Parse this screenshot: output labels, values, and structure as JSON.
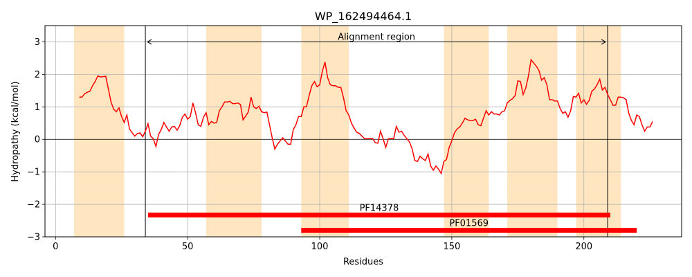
{
  "chart_data": {
    "type": "line",
    "title": "WP_162494464.1",
    "xlabel": "Residues",
    "ylabel": "Hydropathy (kcal/mol)",
    "xlim": [
      -4,
      237
    ],
    "ylim": [
      -3,
      3.5
    ],
    "xticks": [
      0,
      50,
      100,
      150,
      200
    ],
    "yticks": [
      -3,
      -2,
      -1,
      0,
      1,
      2,
      3
    ],
    "grid": true,
    "colors": {
      "line": "#ff0000",
      "shade": "#ffe6c0",
      "bar": "#ff0000",
      "grid": "#b0b0b0"
    },
    "shaded_regions": [
      [
        7,
        26
      ],
      [
        57,
        78
      ],
      [
        93,
        111
      ],
      [
        147,
        164
      ],
      [
        171,
        190
      ],
      [
        197,
        214
      ]
    ],
    "alignment_region": {
      "label": "Alignment region",
      "start": 34,
      "end": 209,
      "y": 3.0
    },
    "domains": [
      {
        "name": "PF14378",
        "start": 35,
        "end": 210,
        "y": -2.33
      },
      {
        "name": "PF01569",
        "start": 93,
        "end": 220,
        "y": -2.8
      }
    ],
    "series": [
      {
        "x": [
          9,
          10,
          11,
          12,
          13,
          14,
          15,
          16,
          17,
          18,
          19,
          20,
          21,
          22,
          23,
          24,
          25,
          26,
          27,
          28,
          29,
          30,
          31,
          32,
          33,
          34,
          35,
          36,
          37,
          38,
          39,
          40,
          41,
          42,
          43,
          44,
          45,
          46,
          47,
          48,
          49,
          50,
          51,
          52,
          53,
          54,
          55,
          56,
          57,
          58,
          59,
          60,
          61,
          62,
          63,
          64,
          65,
          66,
          67,
          68,
          69,
          70,
          71,
          72,
          73,
          74,
          75,
          76,
          77,
          78,
          79,
          80,
          81,
          82,
          83,
          84,
          85,
          86,
          87,
          88,
          89,
          90,
          91,
          92,
          93,
          94,
          95,
          96,
          97,
          98,
          99,
          100,
          101,
          102,
          103,
          104,
          105,
          106,
          107,
          108,
          109,
          110,
          111,
          112,
          113,
          114,
          115,
          116,
          117,
          118,
          119,
          120,
          121,
          122,
          123,
          124,
          125,
          126,
          127,
          128,
          129,
          130,
          131,
          132,
          133,
          134,
          135,
          136,
          137,
          138,
          139,
          140,
          141,
          142,
          143,
          144,
          145,
          146,
          147,
          148,
          149,
          150,
          151,
          152,
          153,
          154,
          155,
          156,
          157,
          158,
          159,
          160,
          161,
          162,
          163,
          164,
          165,
          166,
          167,
          168,
          169,
          170,
          171,
          172,
          173,
          174,
          175,
          176,
          177,
          178,
          179,
          180,
          181,
          182,
          183,
          184,
          185,
          186,
          187,
          188,
          189,
          190,
          191,
          192,
          193,
          194,
          195,
          196,
          197,
          198,
          199,
          200,
          201,
          202,
          203,
          204,
          205,
          206,
          207,
          208,
          209,
          210,
          211,
          212,
          213,
          214,
          215,
          216,
          217,
          218,
          219,
          220,
          221,
          222,
          223,
          224,
          225,
          226
        ],
        "values": [
          1.3,
          1.3,
          1.4,
          1.45,
          1.48,
          1.65,
          1.78,
          1.95,
          1.92,
          1.93,
          1.94,
          1.55,
          1.15,
          0.93,
          0.85,
          0.97,
          0.7,
          0.52,
          0.75,
          0.32,
          0.2,
          0.1,
          0.18,
          0.2,
          0.08,
          0.25,
          0.48,
          0.1,
          0.02,
          -0.22,
          0.15,
          0.3,
          0.52,
          0.38,
          0.25,
          0.38,
          0.4,
          0.28,
          0.42,
          0.68,
          0.78,
          0.62,
          0.7,
          1.12,
          0.82,
          0.45,
          0.4,
          0.68,
          0.82,
          0.45,
          0.55,
          0.5,
          0.52,
          0.88,
          1.0,
          1.15,
          1.15,
          1.17,
          1.1,
          1.1,
          1.12,
          1.07,
          0.6,
          0.72,
          0.85,
          1.3,
          1.0,
          0.95,
          1.02,
          0.85,
          0.82,
          0.84,
          0.45,
          0.05,
          -0.3,
          -0.15,
          -0.05,
          0.05,
          -0.05,
          -0.15,
          -0.15,
          0.3,
          0.45,
          0.7,
          0.7,
          1.0,
          1.0,
          1.35,
          1.65,
          1.78,
          1.62,
          1.68,
          2.1,
          2.38,
          1.9,
          1.68,
          1.65,
          1.65,
          1.6,
          1.6,
          1.28,
          0.88,
          0.75,
          0.5,
          0.35,
          0.22,
          0.18,
          0.1,
          0.02,
          0.02,
          0.03,
          0.03,
          -0.1,
          -0.12,
          0.25,
          0.02,
          -0.25,
          0.02,
          0.03,
          0.02,
          0.4,
          0.22,
          0.25,
          0.12,
          0.02,
          -0.08,
          -0.3,
          -0.65,
          -0.68,
          -0.52,
          -0.6,
          -0.65,
          -0.45,
          -0.82,
          -0.95,
          -0.82,
          -0.92,
          -1.05,
          -0.68,
          -0.62,
          -0.25,
          -0.05,
          0.2,
          0.32,
          0.38,
          0.5,
          0.65,
          0.6,
          0.58,
          0.58,
          0.62,
          0.45,
          0.42,
          0.65,
          0.88,
          0.75,
          0.85,
          0.78,
          0.78,
          0.75,
          0.85,
          0.88,
          1.12,
          1.2,
          1.25,
          1.35,
          1.8,
          1.78,
          1.38,
          1.58,
          1.95,
          2.45,
          2.35,
          2.25,
          2.12,
          1.82,
          1.9,
          1.68,
          1.22,
          1.22,
          1.18,
          1.18,
          0.95,
          0.8,
          0.85,
          0.68,
          0.88,
          1.32,
          1.3,
          1.42,
          1.12,
          1.22,
          1.08,
          1.2,
          1.48,
          1.55,
          1.68,
          1.85,
          1.52,
          1.6,
          1.38,
          1.22,
          1.05,
          1.05,
          1.3,
          1.3,
          1.28,
          1.22,
          0.8,
          0.58,
          0.45,
          0.75,
          0.7,
          0.45,
          0.25,
          0.38,
          0.38,
          0.55
        ]
      }
    ]
  }
}
